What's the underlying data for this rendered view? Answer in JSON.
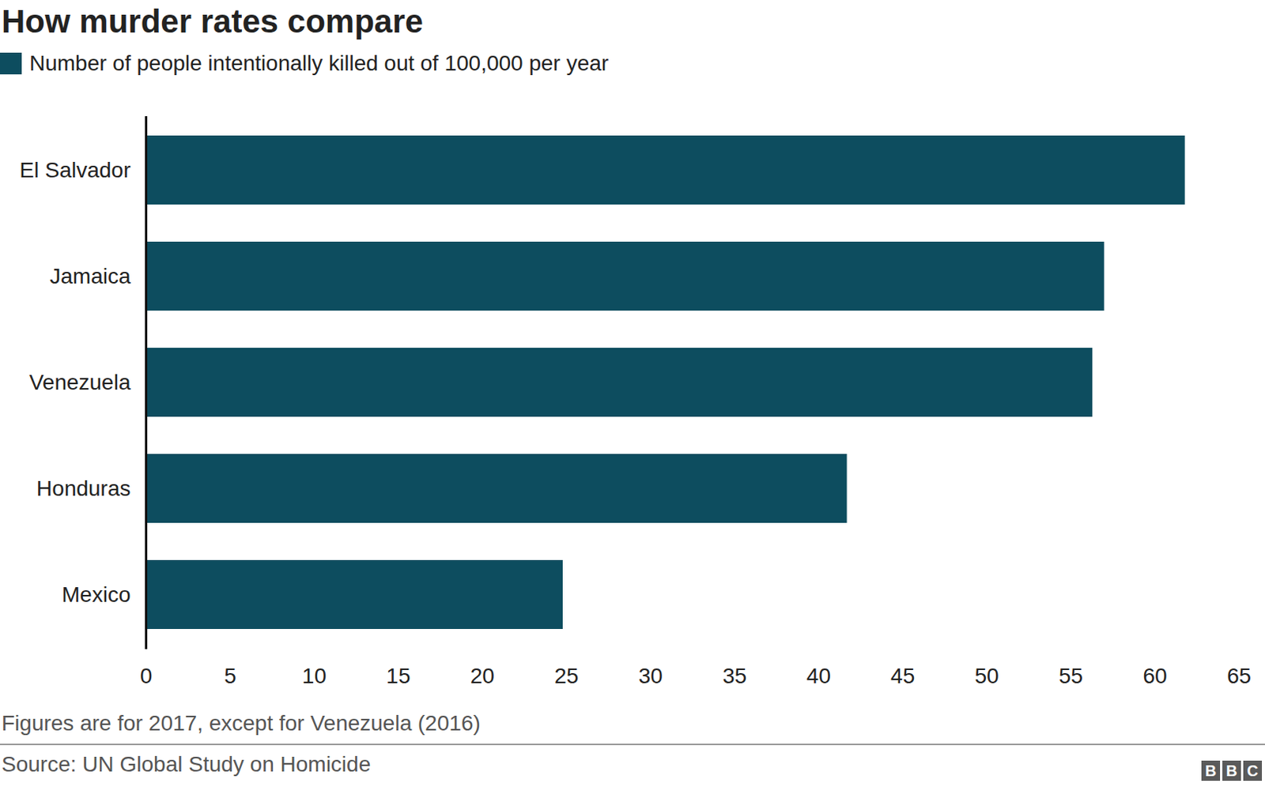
{
  "chart_data": {
    "type": "bar",
    "orientation": "horizontal",
    "title": "How murder rates compare",
    "categories": [
      "El Salvador",
      "Jamaica",
      "Venezuela",
      "Honduras",
      "Mexico"
    ],
    "series": [
      {
        "name": "Number of people intentionally killed out of 100,000 per year",
        "color": "#0d4d5f",
        "values": [
          61.8,
          57.0,
          56.3,
          41.7,
          24.8
        ]
      }
    ],
    "xlim": [
      0,
      65
    ],
    "xticks": [
      0,
      5,
      10,
      15,
      20,
      25,
      30,
      35,
      40,
      45,
      50,
      55,
      60,
      65
    ],
    "grid": false,
    "legend": "top-left",
    "notes": [
      "Figures are for 2017, except for Venezuela (2016)"
    ],
    "source": "Source: UN Global Study on Homicide",
    "logo": "BBC"
  }
}
